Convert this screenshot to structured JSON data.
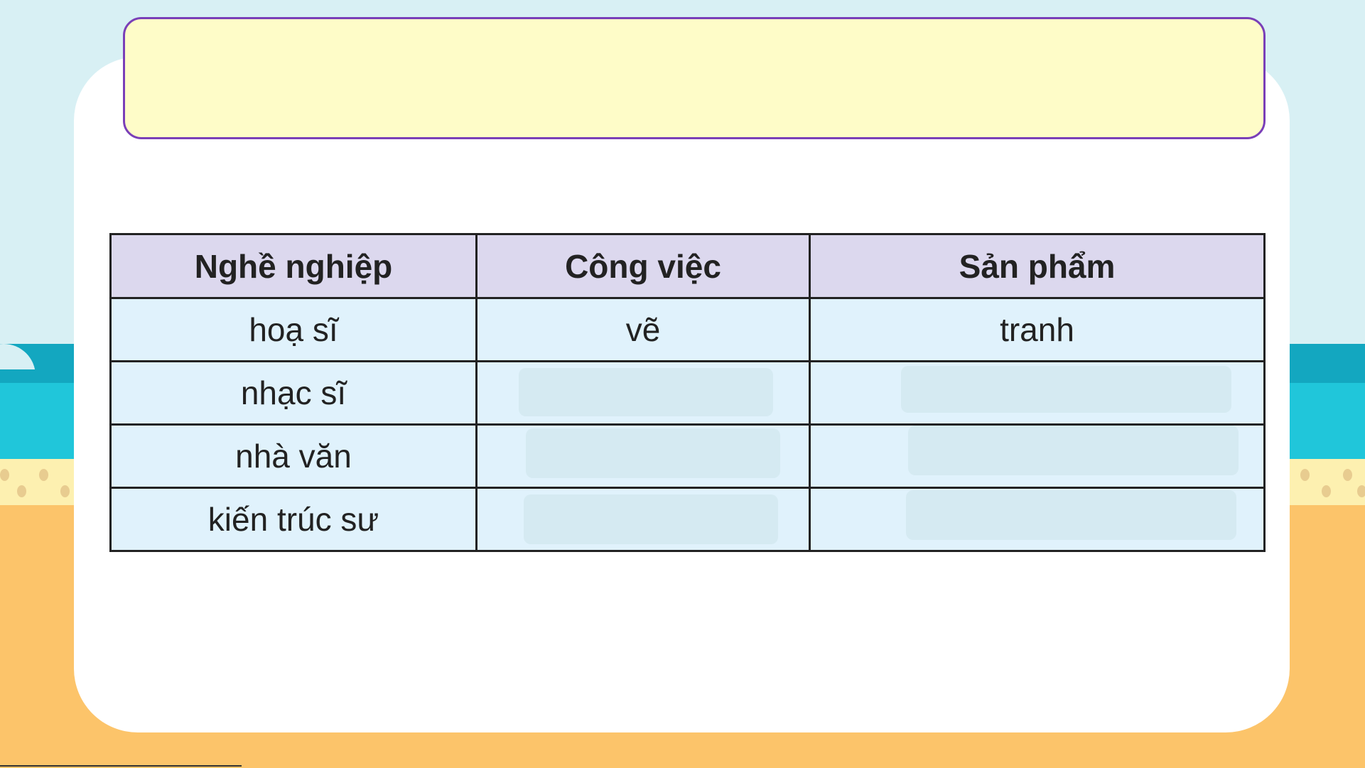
{
  "table": {
    "headers": [
      "Nghề nghiệp",
      "Công việc",
      "Sản phẩm"
    ],
    "rows": [
      [
        "hoạ sĩ",
        "vẽ",
        "tranh"
      ],
      [
        "nhạc sĩ",
        "",
        ""
      ],
      [
        "nhà văn",
        "",
        ""
      ],
      [
        "kiến trúc sư",
        "",
        ""
      ]
    ]
  },
  "colors": {
    "banner_border": "#7a3fb8",
    "banner_fill": "#fefcc8",
    "header_fill": "#dcd8ee",
    "cell_fill": "#e0f2fc"
  }
}
